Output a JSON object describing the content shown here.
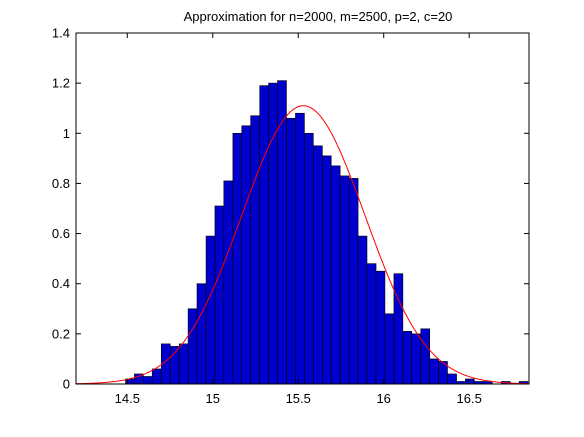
{
  "chart_data": {
    "type": "bar",
    "title": "Approximation for n=2000, m=2500, p=2, c=20",
    "xlabel": "",
    "ylabel": "",
    "xlim": [
      14.2,
      16.85
    ],
    "ylim": [
      0,
      1.4
    ],
    "xticks": [
      14.5,
      15,
      15.5,
      16,
      16.5
    ],
    "xtick_labels": [
      "14.5",
      "15",
      "15.5",
      "16",
      "16.5"
    ],
    "yticks": [
      0,
      0.2,
      0.4,
      0.6,
      0.8,
      1,
      1.2,
      1.4
    ],
    "ytick_labels": [
      "0",
      "0.2",
      "0.4",
      "0.6",
      "0.8",
      "1",
      "1.2",
      "1.4"
    ],
    "grid": false,
    "legend": "none",
    "series": [
      {
        "kind": "histogram",
        "color": "#0000cc",
        "edge_color": "#000000",
        "bin_width": 0.0523,
        "bin_centers": [
          14.254,
          14.306,
          14.358,
          14.411,
          14.463,
          14.516,
          14.568,
          14.62,
          14.672,
          14.725,
          14.777,
          14.83,
          14.882,
          14.934,
          14.987,
          15.039,
          15.091,
          15.144,
          15.196,
          15.248,
          15.301,
          15.353,
          15.405,
          15.458,
          15.51,
          15.562,
          15.615,
          15.667,
          15.719,
          15.772,
          15.824,
          15.876,
          15.929,
          15.981,
          16.033,
          16.086,
          16.138,
          16.19,
          16.243,
          16.295,
          16.347,
          16.4,
          16.452,
          16.504,
          16.557,
          16.609,
          16.661,
          16.714,
          16.766,
          16.818
        ],
        "values": [
          0,
          0,
          0,
          0,
          0,
          0.02,
          0.04,
          0.03,
          0.06,
          0.16,
          0.15,
          0.16,
          0.3,
          0.4,
          0.59,
          0.71,
          0.81,
          1.0,
          1.03,
          1.07,
          1.19,
          1.2,
          1.21,
          1.06,
          1.08,
          1.0,
          0.95,
          0.91,
          0.87,
          0.83,
          0.82,
          0.59,
          0.48,
          0.45,
          0.28,
          0.44,
          0.21,
          0.2,
          0.22,
          0.1,
          0.09,
          0.04,
          0.01,
          0.02,
          0.01,
          0.01,
          0,
          0.01,
          0,
          0.01
        ]
      },
      {
        "kind": "line",
        "color": "#ff0000",
        "distribution": "normal",
        "mean": 15.53,
        "std": 0.36,
        "peak": 1.11,
        "x_range": [
          14.2,
          16.85
        ]
      }
    ]
  }
}
